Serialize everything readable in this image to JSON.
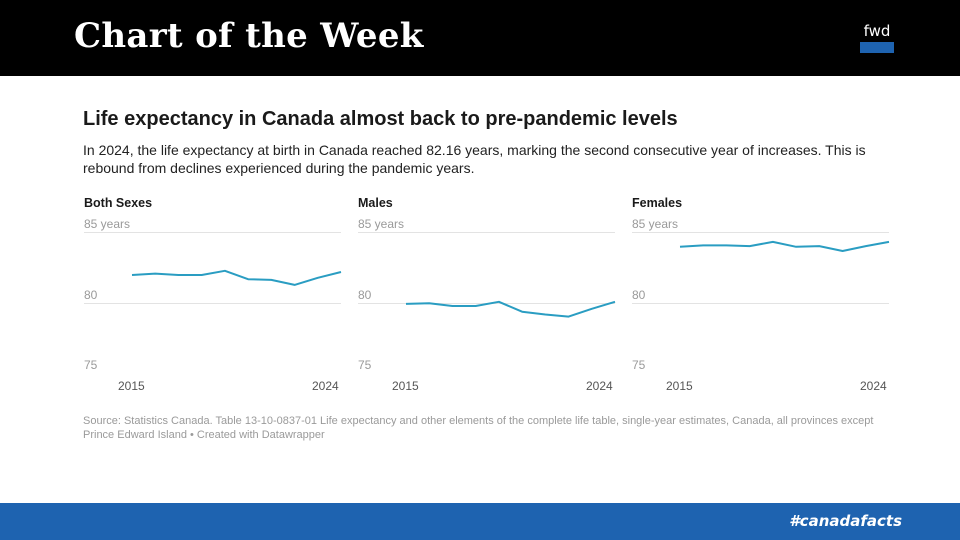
{
  "header": {
    "title": "Chart of the Week",
    "logo_text": "fwd"
  },
  "chart_header": {
    "title": "Life expectancy in Canada almost back to pre-pandemic levels",
    "subtitle": "In 2024, the life expectancy at birth in Canada reached 82.16 years, marking the second consecutive year of increases. This is rebound from declines experienced during the pandemic years."
  },
  "source": "Source: Statistics Canada. Table 13-10-0837-01 Life expectancy and other elements of the complete life table, single-year estimates, Canada, all provinces except Prince Edward Island • Created with Datawrapper",
  "footer": {
    "hashtag": "#canadafacts"
  },
  "colors": {
    "line": "#2a9dc2",
    "header_bg": "#000000",
    "footer_bg": "#1e63b0"
  },
  "chart_data": [
    {
      "type": "line",
      "title": "Both Sexes",
      "x": [
        2015,
        2016,
        2017,
        2018,
        2019,
        2020,
        2021,
        2022,
        2023,
        2024
      ],
      "y": [
        81.95,
        82.05,
        81.95,
        81.95,
        82.25,
        81.65,
        81.6,
        81.25,
        81.75,
        82.16
      ],
      "ylim": [
        75,
        85
      ],
      "y_ticks": [
        "85 years",
        "80",
        "75"
      ],
      "x_ticks": [
        "2015",
        "2024"
      ],
      "grid": true
    },
    {
      "type": "line",
      "title": "Males",
      "x": [
        2015,
        2016,
        2017,
        2018,
        2019,
        2020,
        2021,
        2022,
        2023,
        2024
      ],
      "y": [
        79.9,
        79.95,
        79.75,
        79.75,
        80.05,
        79.35,
        79.15,
        79.0,
        79.55,
        80.05
      ],
      "ylim": [
        75,
        85
      ],
      "y_ticks": [
        "85 years",
        "80",
        "75"
      ],
      "x_ticks": [
        "2015",
        "2024"
      ],
      "grid": true
    },
    {
      "type": "line",
      "title": "Females",
      "x": [
        2015,
        2016,
        2017,
        2018,
        2019,
        2020,
        2021,
        2022,
        2023,
        2024
      ],
      "y": [
        83.95,
        84.05,
        84.05,
        84.0,
        84.3,
        83.95,
        84.0,
        83.65,
        84.0,
        84.3
      ],
      "ylim": [
        75,
        85
      ],
      "y_ticks": [
        "85 years",
        "80",
        "75"
      ],
      "x_ticks": [
        "2015",
        "2024"
      ],
      "grid": true
    }
  ]
}
